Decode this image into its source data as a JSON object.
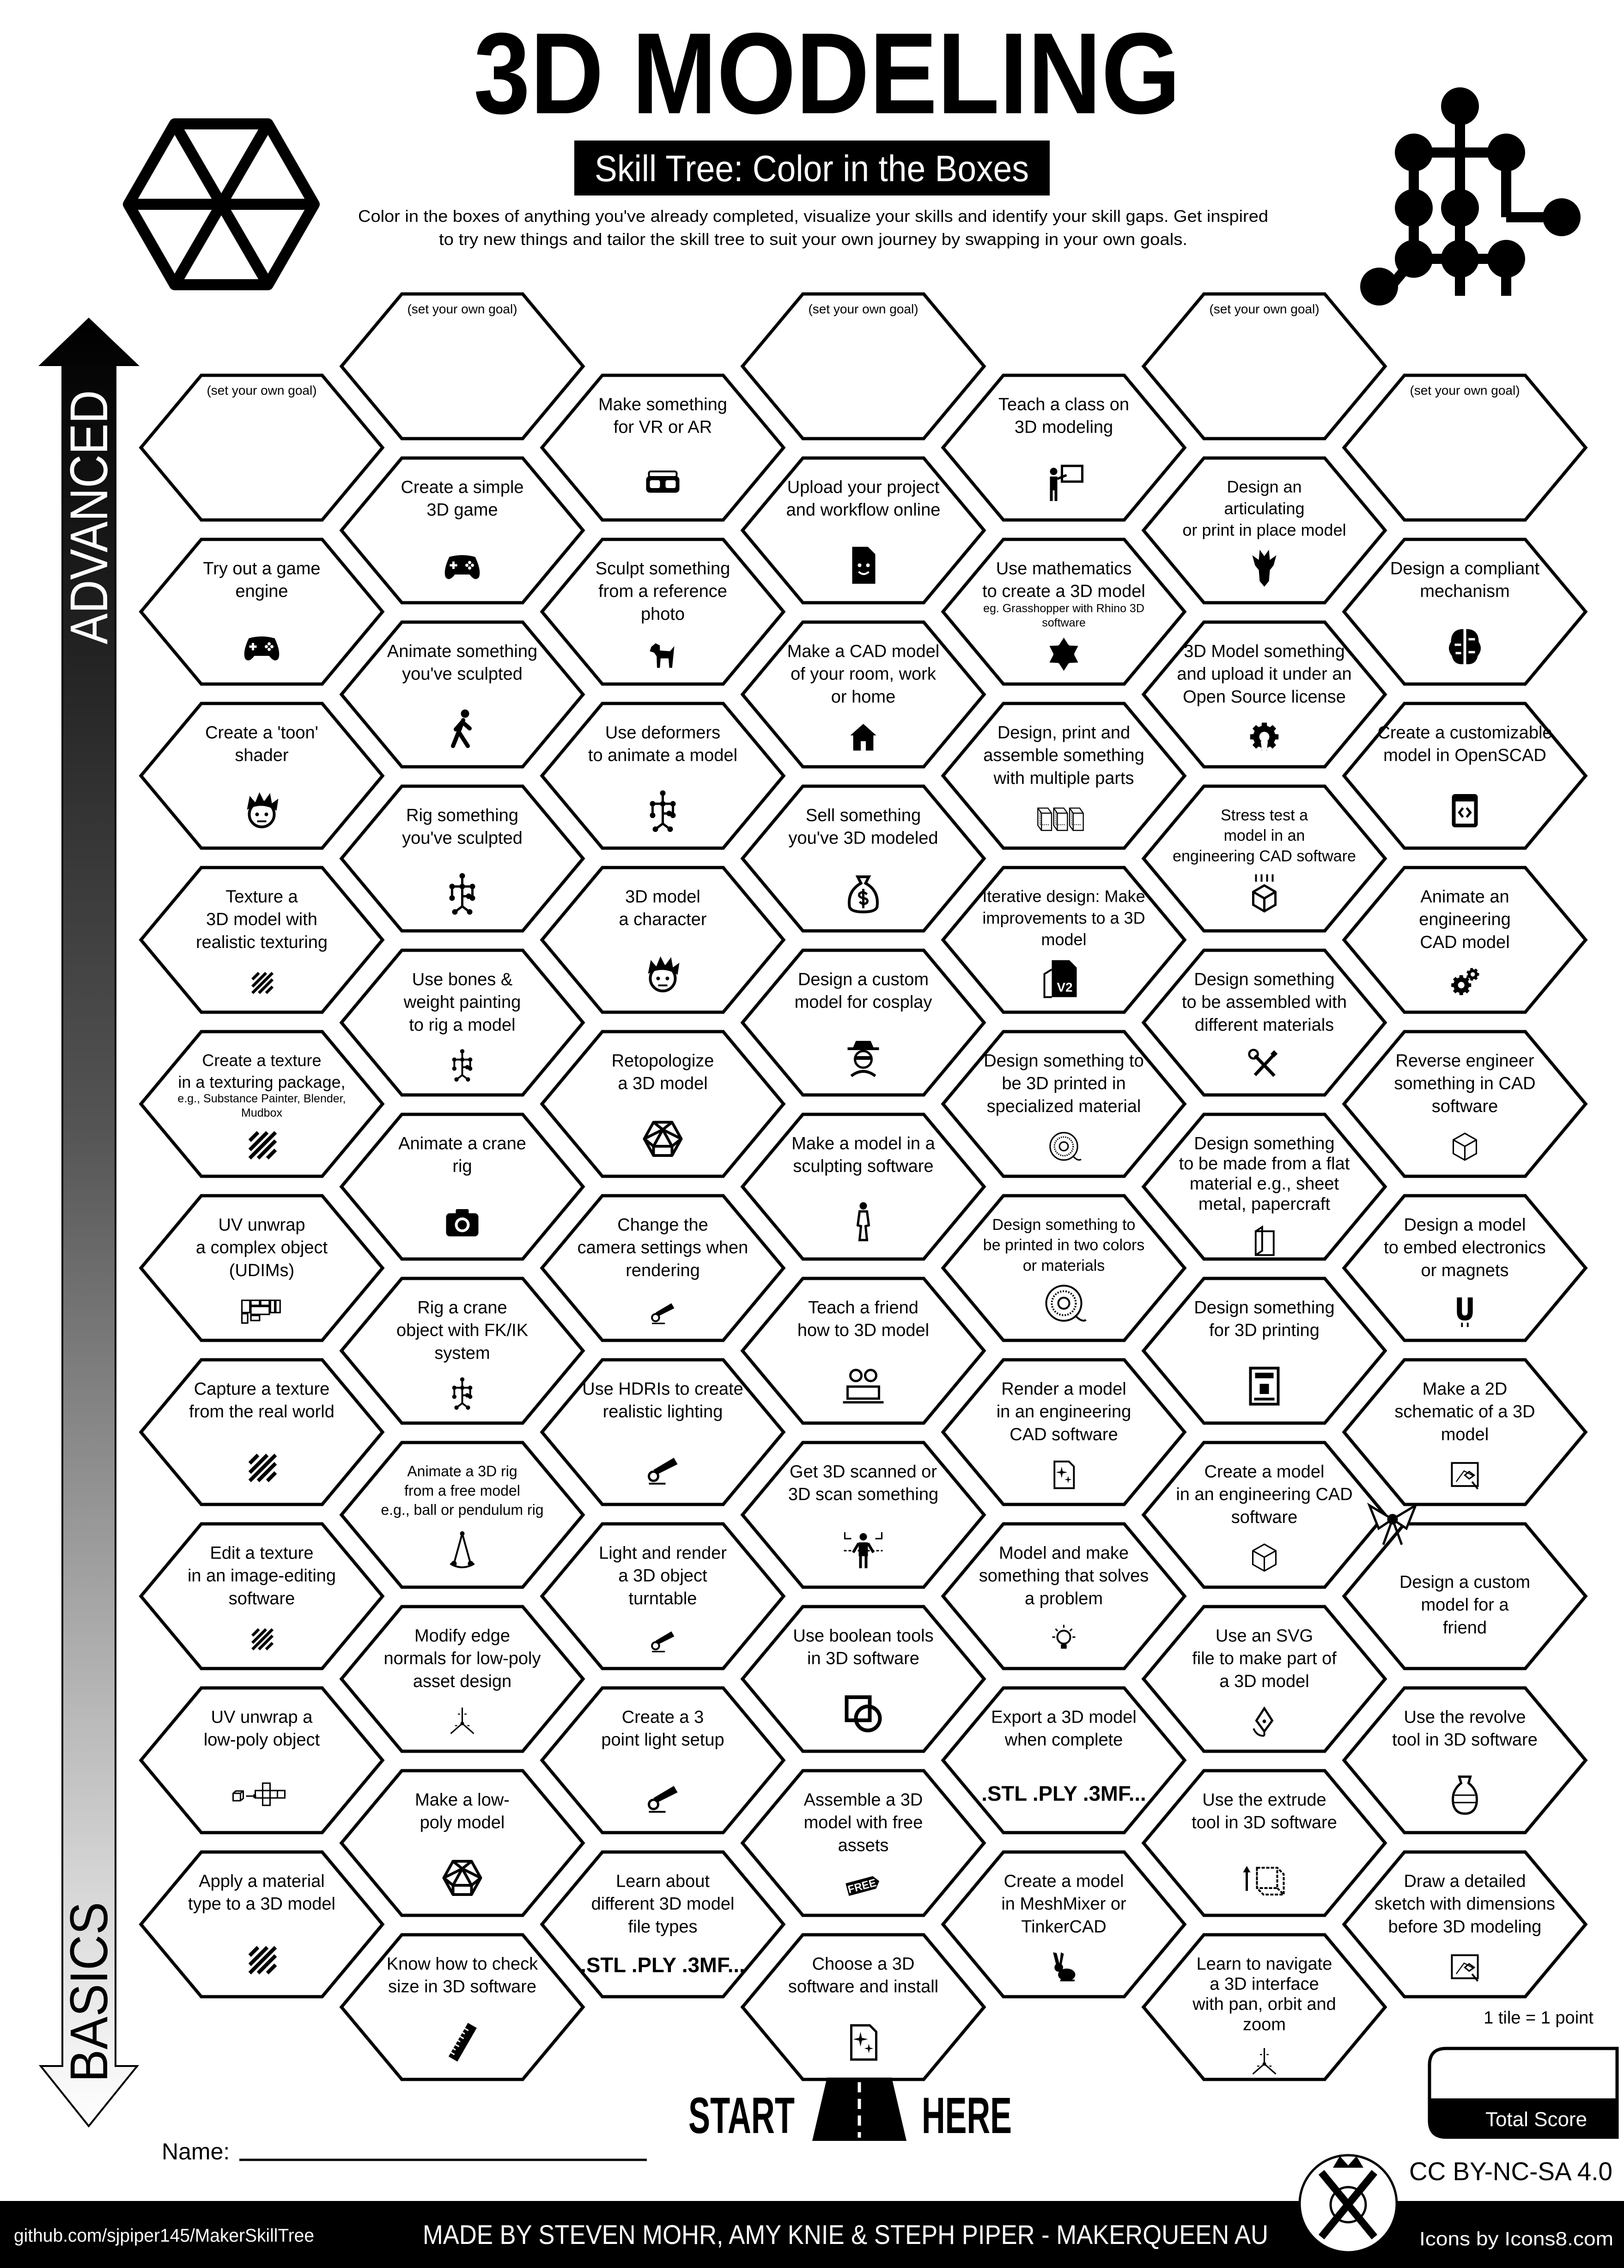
{
  "header": {
    "title": "3D MODELING",
    "subtitle": "Skill Tree: Color in the Boxes",
    "description": [
      "Color in the boxes of anything you've already completed, visualize your skills and identify your skill gaps.  Get inspired",
      "to try new things and tailor the skill tree to suit your own journey by swapping in your own goals."
    ]
  },
  "axis": {
    "top_label": "ADVANCED",
    "bottom_label": "BASICS"
  },
  "grid": {
    "columns": [
      {
        "items": [
          {
            "goal": true,
            "lines": [
              "(set your own goal)"
            ]
          },
          {
            "lines": [
              "Try out a game",
              "engine"
            ],
            "icon": "gamepad"
          },
          {
            "lines": [
              "Create a 'toon'",
              "shader"
            ],
            "icon": "toon-face"
          },
          {
            "lines": [
              "Texture a",
              "3D model with",
              "realistic texturing"
            ],
            "icon": "texture-stripes"
          },
          {
            "lines": [
              "Create a texture",
              "in a texturing package,"
            ],
            "note": [
              "e.g., Substance Painter, Blender,",
              "Mudbox"
            ],
            "icon": "texture-stripes"
          },
          {
            "lines": [
              "UV unwrap",
              "a complex object",
              "(UDIMs)"
            ],
            "icon": "udim-layout"
          },
          {
            "lines": [
              "Capture a texture",
              "from the real world"
            ],
            "icon": "texture-stripes"
          },
          {
            "lines": [
              "Edit a texture",
              "in an image-editing",
              "software"
            ],
            "icon": "texture-stripes"
          },
          {
            "lines": [
              "UV unwrap a",
              "low-poly object"
            ],
            "icon": "uv-unwrap"
          },
          {
            "lines": [
              "Apply a material",
              "type to a 3D model"
            ],
            "icon": "texture-stripes"
          }
        ]
      },
      {
        "items": [
          {
            "goal": true,
            "lines": [
              "(set your own goal)"
            ]
          },
          {
            "lines": [
              "Create a simple",
              "3D game"
            ],
            "icon": "gamepad"
          },
          {
            "lines": [
              "Animate something",
              "you've sculpted"
            ],
            "icon": "walking-person"
          },
          {
            "lines": [
              "Rig something",
              "you've sculpted"
            ],
            "icon": "rig-skeleton"
          },
          {
            "lines": [
              "Use bones &",
              "weight painting",
              "to rig a model"
            ],
            "icon": "rig-skeleton"
          },
          {
            "lines": [
              "Animate a crane",
              "rig"
            ],
            "icon": "camera"
          },
          {
            "lines": [
              "Rig a crane",
              "object with FK/IK",
              "system"
            ],
            "icon": "rig-skeleton"
          },
          {
            "lines": [
              "Animate a 3D rig",
              "from a free model",
              "e.g., ball or pendulum rig"
            ],
            "icon": "pendulum"
          },
          {
            "lines": [
              "Modify edge",
              "normals for low-poly",
              "asset design"
            ],
            "icon": "axes"
          },
          {
            "lines": [
              "Make a low-",
              "poly model"
            ],
            "icon": "icosahedron"
          },
          {
            "lines": [
              "Know how to check",
              "size in 3D software"
            ],
            "icon": "ruler"
          }
        ]
      },
      {
        "items": [
          {
            "lines": [
              "Make something",
              "for VR or AR"
            ],
            "icon": "vr-headset"
          },
          {
            "lines": [
              "Sculpt something",
              "from a reference",
              "photo"
            ],
            "icon": "dog"
          },
          {
            "lines": [
              "Use deformers",
              "to animate a model"
            ],
            "icon": "rig-skeleton"
          },
          {
            "lines": [
              "3D model",
              "a character"
            ],
            "icon": "toon-face"
          },
          {
            "lines": [
              "Retopologize",
              "a 3D model"
            ],
            "icon": "icosahedron"
          },
          {
            "lines": [
              "Change the",
              "camera settings when",
              "rendering"
            ],
            "icon": "spotlight"
          },
          {
            "lines": [
              "Use HDRIs to create",
              "realistic lighting"
            ],
            "icon": "spotlight"
          },
          {
            "lines": [
              "Light and render",
              "a 3D object",
              "turntable"
            ],
            "icon": "spotlight"
          },
          {
            "lines": [
              "Create a 3",
              "point light setup"
            ],
            "icon": "spotlight"
          },
          {
            "lines": [
              "Learn about",
              "different 3D model",
              "file types"
            ],
            "icon": "file-formats",
            "icon_text": ".STL .PLY .3MF..."
          }
        ]
      },
      {
        "items": [
          {
            "goal": true,
            "lines": [
              "(set your own goal)"
            ]
          },
          {
            "lines": [
              "Upload your project",
              "and workflow online"
            ],
            "icon": "document-upload"
          },
          {
            "lines": [
              "Make a CAD model",
              "of your room, work",
              "or home"
            ],
            "icon": "house"
          },
          {
            "lines": [
              "Sell something",
              "you've 3D modeled"
            ],
            "icon": "money-bag"
          },
          {
            "lines": [
              "Design a custom",
              "model for cosplay"
            ],
            "icon": "cosplay-mask"
          },
          {
            "lines": [
              "Make a model in a",
              "sculpting software"
            ],
            "icon": "statue"
          },
          {
            "lines": [
              "Teach a friend",
              "how to 3D model"
            ],
            "icon": "friends-laptop"
          },
          {
            "lines": [
              "Get 3D scanned or",
              "3D scan something"
            ],
            "icon": "body-scan"
          },
          {
            "lines": [
              "Use boolean tools",
              "in 3D software"
            ],
            "icon": "boolean-shapes"
          },
          {
            "lines": [
              "Assemble a 3D",
              "model with free",
              "assets"
            ],
            "icon": "free-tag",
            "icon_text": "FREE"
          },
          {
            "lines": [
              "Choose a 3D",
              "software and install"
            ],
            "icon": "sparkle-file"
          }
        ]
      },
      {
        "items": [
          {
            "lines": [
              "Teach a class on",
              "3D modeling"
            ],
            "icon": "teacher-board"
          },
          {
            "lines": [
              "Use mathematics",
              "to create a 3D model"
            ],
            "note": [
              "eg. Grasshopper with Rhino 3D",
              "software"
            ],
            "icon": "fractal-snowflake"
          },
          {
            "lines": [
              "Design, print and",
              "assemble something",
              "with multiple parts"
            ],
            "icon": "three-cubes"
          },
          {
            "lines": [
              "Iterative design:  Make",
              "improvements to a 3D",
              "model"
            ],
            "icon": "version-file",
            "icon_text": "V2"
          },
          {
            "lines": [
              "Design something to",
              "be 3D printed in",
              "specialized material"
            ],
            "icon": "filament-spool"
          },
          {
            "lines": [
              "Design something to",
              "be printed in two colors",
              "or materials"
            ],
            "icon": "filament-spool"
          },
          {
            "lines": [
              "Render a model",
              "in an engineering",
              "CAD software"
            ],
            "icon": "sparkle-file"
          },
          {
            "lines": [
              "Model and make",
              "something that solves",
              "a problem"
            ],
            "icon": "lightbulb"
          },
          {
            "lines": [
              "Export a 3D model",
              "when complete"
            ],
            "icon": "file-formats",
            "icon_text": ".STL .PLY .3MF..."
          },
          {
            "lines": [
              "Create a model",
              "in MeshMixer or",
              "TinkerCAD"
            ],
            "icon": "rabbit"
          }
        ]
      },
      {
        "items": [
          {
            "goal": true,
            "lines": [
              "(set your own goal)"
            ]
          },
          {
            "lines": [
              "Design an",
              "articulating",
              "or print in place model"
            ],
            "icon": "dragon"
          },
          {
            "lines": [
              "3D Model something",
              "and upload it under an",
              "Open Source license"
            ],
            "icon": "open-source-gear"
          },
          {
            "lines": [
              "Stress test a",
              "model in an",
              "engineering CAD software"
            ],
            "icon": "stress-cube"
          },
          {
            "lines": [
              "Design something",
              "to be assembled with",
              "different materials"
            ],
            "icon": "wrench-screwdriver"
          },
          {
            "lines": [
              "Design something",
              "to be made from a flat",
              "material e.g., sheet",
              "metal, papercraft"
            ],
            "icon": "papercraft-book"
          },
          {
            "lines": [
              "Design something",
              "for 3D printing"
            ],
            "icon": "3d-printer"
          },
          {
            "lines": [
              "Create a model",
              "in an engineering CAD",
              "software"
            ],
            "icon": "cube"
          },
          {
            "lines": [
              "Use an SVG",
              "file to make part of",
              "a 3D model"
            ],
            "icon": "vector-pen"
          },
          {
            "lines": [
              "Use the extrude",
              "tool in 3D software"
            ],
            "icon": "extrude-cube"
          },
          {
            "lines": [
              "Learn to navigate",
              "a 3D interface",
              "with pan, orbit and",
              "zoom"
            ],
            "icon": "axes"
          }
        ]
      },
      {
        "items": [
          {
            "goal": true,
            "lines": [
              "(set your own goal)"
            ]
          },
          {
            "lines": [
              "Design a compliant",
              "mechanism"
            ],
            "icon": "brain"
          },
          {
            "lines": [
              "Create a customizable",
              "model in OpenSCAD"
            ],
            "icon": "code-window"
          },
          {
            "lines": [
              "Animate an",
              "engineering",
              "CAD model"
            ],
            "icon": "gears"
          },
          {
            "lines": [
              "Reverse engineer",
              "something in CAD",
              "software"
            ],
            "icon": "cube"
          },
          {
            "lines": [
              "Design a model",
              "to embed electronics",
              "or magnets"
            ],
            "icon": "magnet"
          },
          {
            "lines": [
              "Make a 2D",
              "schematic of a 3D",
              "model"
            ],
            "icon": "schematic"
          },
          {
            "lines": [
              "Design a custom",
              "model for a",
              "friend"
            ],
            "icon": "gift-bow"
          },
          {
            "lines": [
              "Use the revolve",
              "tool in 3D software"
            ],
            "icon": "vase"
          },
          {
            "lines": [
              "Draw a detailed",
              "sketch with dimensions",
              "before 3D modeling"
            ],
            "icon": "schematic"
          }
        ]
      }
    ]
  },
  "start": {
    "left": "START",
    "right": "HERE",
    "icon": "road"
  },
  "name_label": "Name:",
  "score": {
    "rule": "1 tile = 1 point",
    "label": "Total Score"
  },
  "license": "CC BY-NC-SA 4.0",
  "footer": {
    "repo": "github.com/sjpiper145/MakerSkillTree",
    "credits": "MADE BY STEVEN MOHR, AMY KNIE & STEPH PIPER  -  MAKERQUEEN AU",
    "icons_credit": "Icons by Icons8.com"
  }
}
